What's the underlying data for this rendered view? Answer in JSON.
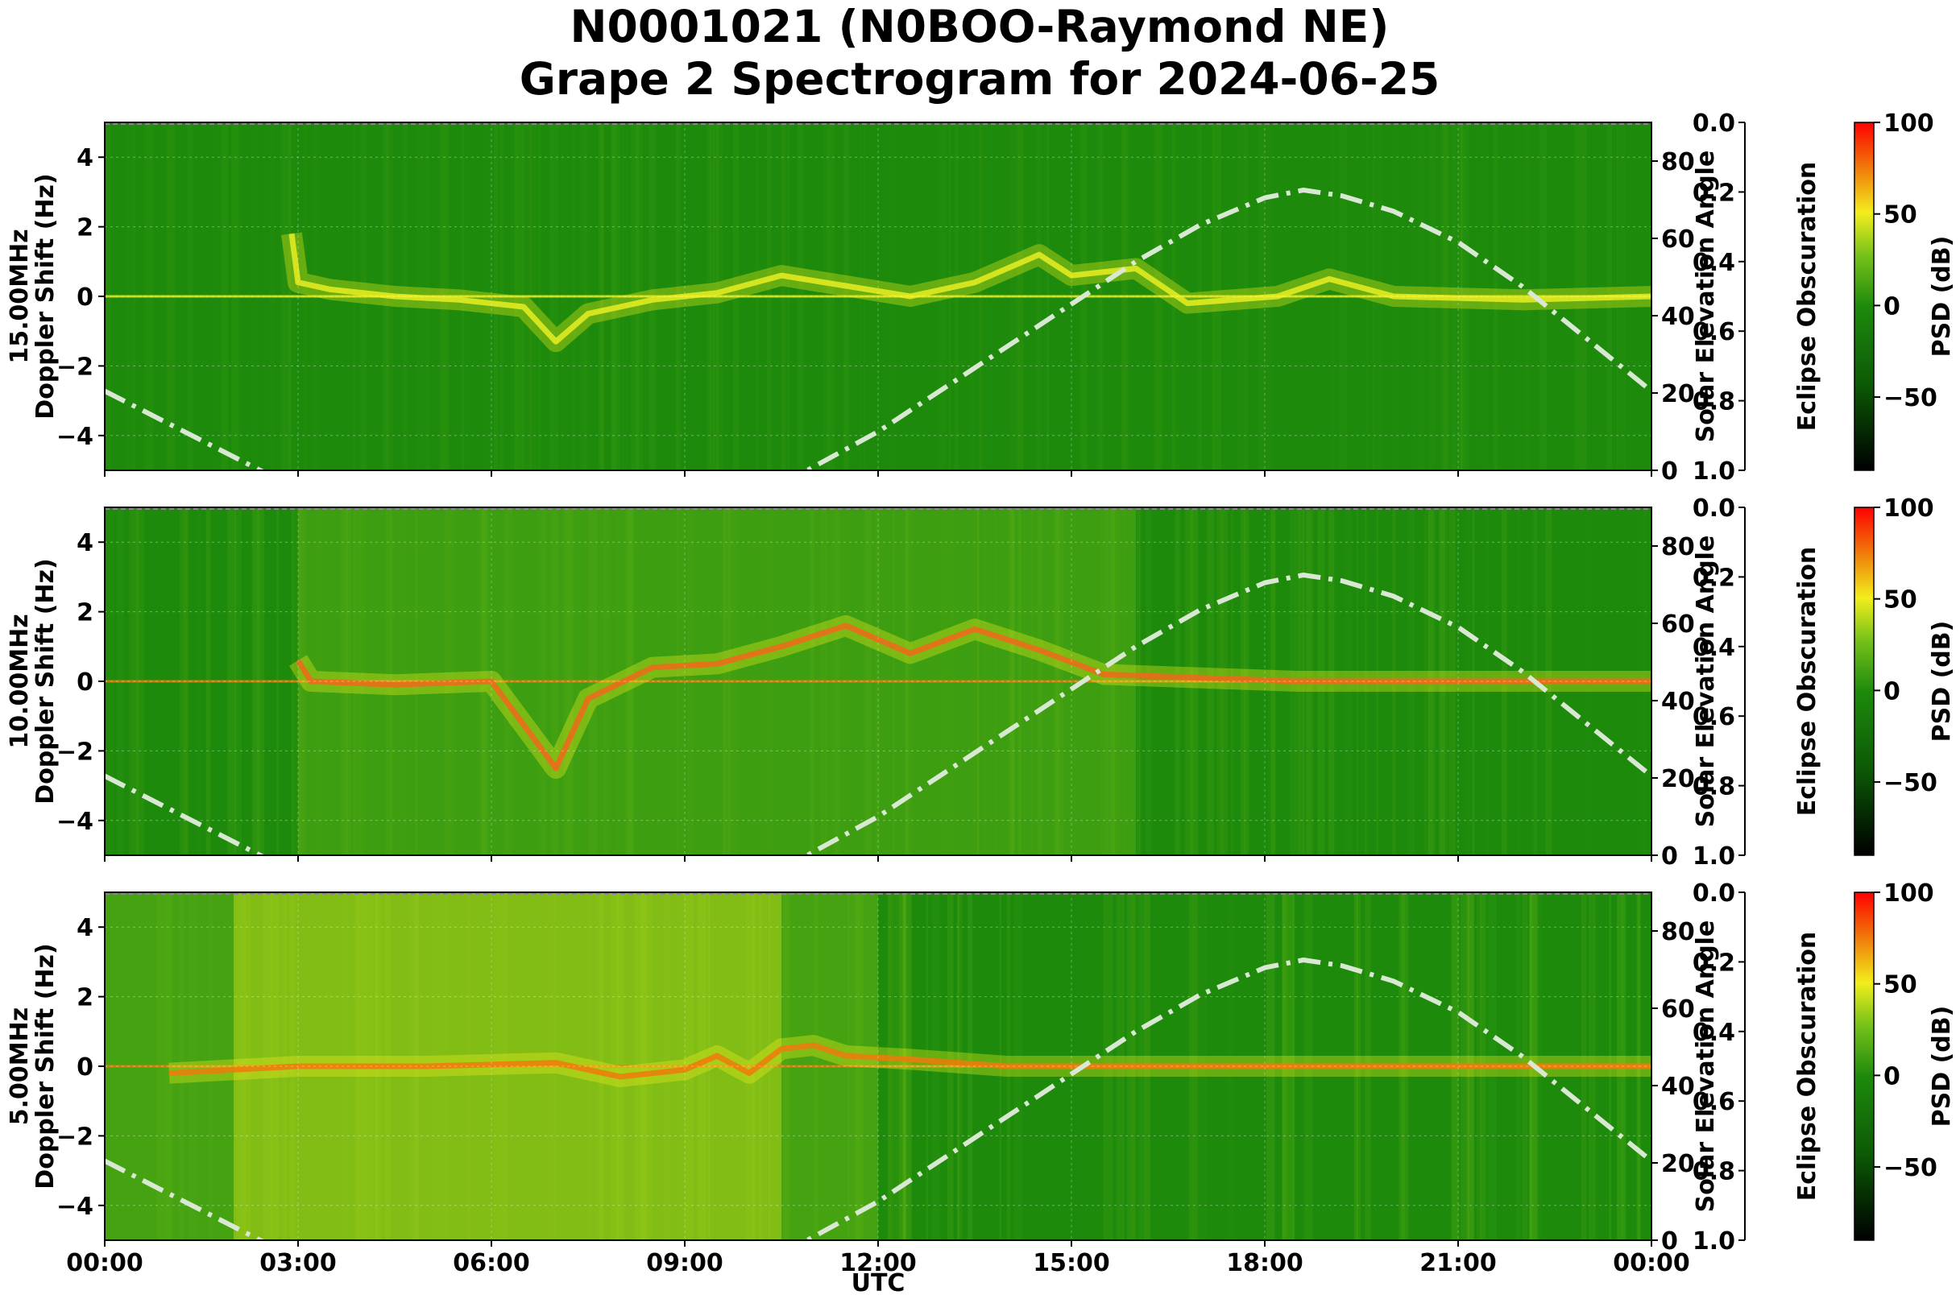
{
  "title_line1": "N0001021 (N0BOO-Raymond NE)",
  "title_line2": "Grape 2 Spectrogram for 2024-06-25",
  "xlabel": "UTC",
  "x_ticks": [
    "00:00",
    "03:00",
    "06:00",
    "09:00",
    "12:00",
    "15:00",
    "18:00",
    "21:00",
    "00:00"
  ],
  "left_ticks": [
    "4",
    "2",
    "0",
    "−2",
    "−4"
  ],
  "right_ticks": [
    "80",
    "60",
    "40",
    "20",
    "0"
  ],
  "obsc_ticks": [
    "0.0",
    "0.2",
    "0.4",
    "0.6",
    "0.8",
    "1.0"
  ],
  "cbar_ticks": [
    "100",
    "50",
    "0",
    "−50"
  ],
  "right_label": "Solar Elevation Angle",
  "obsc_label": "Eclipse Obscuration",
  "cbar_label": "PSD (dB)",
  "colors": {
    "bg_green": "#1d8a0c",
    "dark_green": "#0c5a06",
    "light_green": "#78c21a",
    "yellow": "#f2ee1c",
    "orange": "#f07a0a",
    "red": "#e41a0a",
    "solar_curve": "#d9e8d2"
  },
  "chart_data": [
    {
      "type": "heatmap",
      "panel": "15.00MHz",
      "ylabel_line1": "15.00MHz",
      "ylabel_line2": "Doppler Shift (Hz)",
      "x_range_hours": [
        0,
        24
      ],
      "y_range_hz": [
        -5,
        5
      ],
      "right_axis_range_deg": [
        0,
        90
      ],
      "cbar_range_db": [
        -90,
        100
      ],
      "trace_color": "#e8ee22",
      "noise_level": 0.35,
      "doppler_trace": [
        [
          2.9,
          1.8
        ],
        [
          3.0,
          0.4
        ],
        [
          3.5,
          0.2
        ],
        [
          4.5,
          0.0
        ],
        [
          5.5,
          -0.1
        ],
        [
          6.5,
          -0.3
        ],
        [
          7.0,
          -1.3
        ],
        [
          7.5,
          -0.5
        ],
        [
          8.5,
          -0.1
        ],
        [
          9.5,
          0.1
        ],
        [
          10.5,
          0.6
        ],
        [
          11.5,
          0.3
        ],
        [
          12.5,
          0.0
        ],
        [
          13.5,
          0.4
        ],
        [
          14.5,
          1.2
        ],
        [
          15.0,
          0.6
        ],
        [
          16.0,
          0.8
        ],
        [
          16.8,
          -0.2
        ],
        [
          17.5,
          -0.1
        ],
        [
          18.2,
          0.0
        ],
        [
          19.0,
          0.5
        ],
        [
          20.0,
          0.0
        ],
        [
          22.0,
          -0.1
        ],
        [
          24.0,
          0.0
        ]
      ]
    },
    {
      "type": "heatmap",
      "panel": "10.00MHz",
      "ylabel_line1": "10.00MHz",
      "ylabel_line2": "Doppler Shift (Hz)",
      "x_range_hours": [
        0,
        24
      ],
      "y_range_hz": [
        -5,
        5
      ],
      "right_axis_range_deg": [
        0,
        90
      ],
      "cbar_range_db": [
        -90,
        100
      ],
      "trace_color": "#f2671a",
      "noise_level": 0.55,
      "doppler_trace": [
        [
          3.0,
          0.6
        ],
        [
          3.2,
          0.0
        ],
        [
          4.5,
          -0.1
        ],
        [
          6.0,
          0.0
        ],
        [
          7.0,
          -2.5
        ],
        [
          7.5,
          -0.5
        ],
        [
          8.5,
          0.4
        ],
        [
          9.5,
          0.5
        ],
        [
          10.5,
          1.0
        ],
        [
          11.5,
          1.6
        ],
        [
          12.5,
          0.8
        ],
        [
          13.5,
          1.5
        ],
        [
          14.5,
          0.9
        ],
        [
          15.5,
          0.2
        ],
        [
          18.5,
          0.0
        ],
        [
          21.5,
          0.0
        ],
        [
          24.0,
          0.0
        ]
      ]
    },
    {
      "type": "heatmap",
      "panel": "5.00MHz",
      "ylabel_line1": "5.00MHz",
      "ylabel_line2": "Doppler Shift (Hz)",
      "x_range_hours": [
        0,
        24
      ],
      "y_range_hz": [
        -5,
        5
      ],
      "right_axis_range_deg": [
        0,
        90
      ],
      "cbar_range_db": [
        -90,
        100
      ],
      "trace_color": "#f07a0a",
      "noise_level": 0.75,
      "doppler_trace": [
        [
          1.0,
          -0.2
        ],
        [
          3.0,
          0.0
        ],
        [
          5.0,
          0.0
        ],
        [
          7.0,
          0.1
        ],
        [
          8.0,
          -0.3
        ],
        [
          9.0,
          -0.1
        ],
        [
          9.5,
          0.3
        ],
        [
          10.0,
          -0.2
        ],
        [
          10.5,
          0.5
        ],
        [
          11.0,
          0.6
        ],
        [
          11.5,
          0.3
        ],
        [
          12.5,
          0.2
        ],
        [
          14.0,
          0.0
        ],
        [
          20.0,
          0.0
        ],
        [
          24.0,
          0.0
        ]
      ]
    }
  ],
  "solar_elevation_deg": [
    [
      0.0,
      20.5
    ],
    [
      1.0,
      12.0
    ],
    [
      2.0,
      3.5
    ],
    [
      3.0,
      -5.0
    ],
    [
      6.0,
      -25.0
    ],
    [
      9.0,
      -8.0
    ],
    [
      10.9,
      0.0
    ],
    [
      12.0,
      10.0
    ],
    [
      13.0,
      21.0
    ],
    [
      14.0,
      32.0
    ],
    [
      15.0,
      43.0
    ],
    [
      16.0,
      54.0
    ],
    [
      17.0,
      63.5
    ],
    [
      18.0,
      70.5
    ],
    [
      18.6,
      72.5
    ],
    [
      19.2,
      71.0
    ],
    [
      20.0,
      67.0
    ],
    [
      21.0,
      59.0
    ],
    [
      22.0,
      47.5
    ],
    [
      23.0,
      34.0
    ],
    [
      24.0,
      20.5
    ]
  ]
}
